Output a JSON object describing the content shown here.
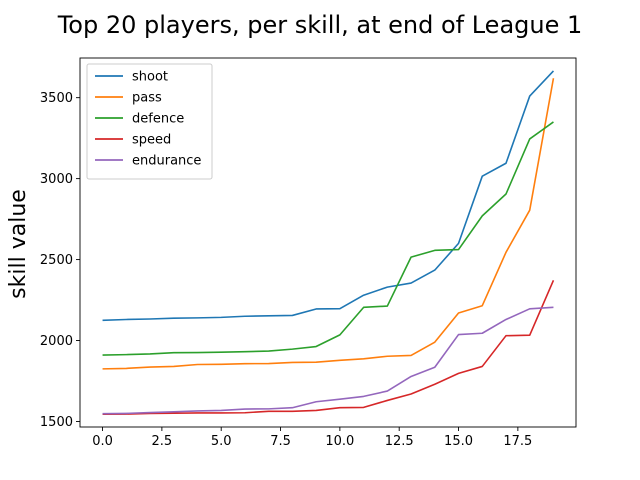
{
  "chart_data": {
    "type": "line",
    "title": "Top 20 players, per skill, at end of League 1",
    "xlabel": "",
    "ylabel": "skill value",
    "xlim": [
      -0.95,
      19.95
    ],
    "ylim": [
      1466,
      3745
    ],
    "xticks": [
      0,
      2.5,
      5,
      7.5,
      10,
      12.5,
      15,
      17.5
    ],
    "xtick_labels": [
      "0.0",
      "2.5",
      "5.0",
      "7.5",
      "10.0",
      "12.5",
      "15.0",
      "17.5"
    ],
    "yticks": [
      1500,
      2000,
      2500,
      3000,
      3500
    ],
    "ytick_labels": [
      "1500",
      "2000",
      "2500",
      "3000",
      "3500"
    ],
    "grid": false,
    "legend_position": "top-left",
    "x": [
      0,
      1,
      2,
      3,
      4,
      5,
      6,
      7,
      8,
      9,
      10,
      11,
      12,
      13,
      14,
      15,
      16,
      17,
      18,
      19
    ],
    "series": [
      {
        "name": "shoot",
        "color": "#1f77b4",
        "values": [
          2125,
          2130,
          2133,
          2138,
          2140,
          2143,
          2150,
          2153,
          2155,
          2195,
          2197,
          2280,
          2330,
          2355,
          2435,
          2600,
          3015,
          3095,
          3510,
          3665
        ]
      },
      {
        "name": "pass",
        "color": "#ff7f0e",
        "values": [
          1825,
          1828,
          1836,
          1840,
          1852,
          1853,
          1857,
          1858,
          1865,
          1866,
          1878,
          1887,
          1903,
          1908,
          1990,
          2170,
          2215,
          2545,
          2805,
          3620
        ]
      },
      {
        "name": "defence",
        "color": "#2ca02c",
        "values": [
          1910,
          1913,
          1917,
          1925,
          1926,
          1928,
          1931,
          1935,
          1947,
          1963,
          2035,
          2205,
          2213,
          2515,
          2557,
          2562,
          2770,
          2905,
          3245,
          3350
        ]
      },
      {
        "name": "speed",
        "color": "#d62728",
        "values": [
          1545,
          1546,
          1550,
          1551,
          1553,
          1553,
          1554,
          1563,
          1563,
          1568,
          1585,
          1587,
          1630,
          1670,
          1730,
          1797,
          1840,
          2030,
          2033,
          2372
        ]
      },
      {
        "name": "endurance",
        "color": "#9467bd",
        "values": [
          1548,
          1550,
          1555,
          1560,
          1565,
          1568,
          1577,
          1578,
          1585,
          1622,
          1638,
          1655,
          1688,
          1778,
          1835,
          2037,
          2045,
          2130,
          2196,
          2205
        ]
      }
    ]
  }
}
